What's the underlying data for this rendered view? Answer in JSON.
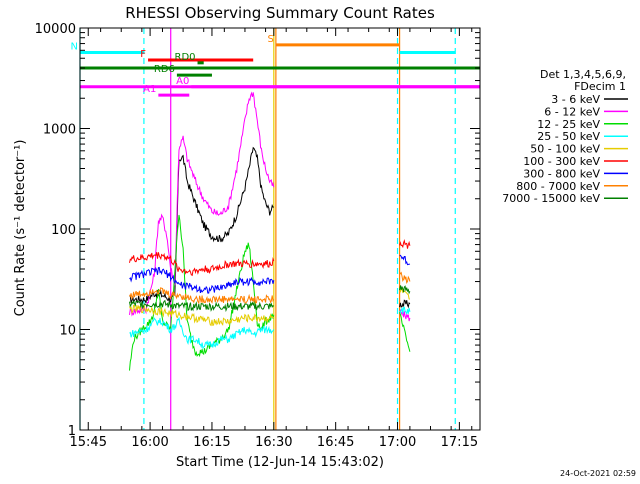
{
  "chart_data": {
    "type": "line",
    "title": "RHESSI Observing Summary Count Rates",
    "xlabel": "Start Time (12-Jun-14 15:43:02)",
    "ylabel": "Count Rate (s⁻¹ detector⁻¹)",
    "x_unit": "minutes after 15:43:02",
    "xlim": [
      0,
      97
    ],
    "ylim": [
      1,
      10000
    ],
    "y_scale": "log",
    "grid": false,
    "legend_position": "right",
    "timestamp": "24-Oct-2021 02:59",
    "x_ticks": [
      {
        "label": "15:45",
        "t": 2
      },
      {
        "label": "16:00",
        "t": 17
      },
      {
        "label": "16:15",
        "t": 32
      },
      {
        "label": "16:30",
        "t": 47
      },
      {
        "label": "16:45",
        "t": 62
      },
      {
        "label": "17:00",
        "t": 77
      },
      {
        "label": "17:15",
        "t": 92
      }
    ],
    "y_ticks": [
      {
        "label": "1",
        "v": 1
      },
      {
        "label": "10",
        "v": 10
      },
      {
        "label": "100",
        "v": 100
      },
      {
        "label": "1000",
        "v": 1000
      },
      {
        "label": "10000",
        "v": 10000
      }
    ],
    "legend": {
      "header": [
        "Det 1,3,4,5,6,9,",
        "FDecim 1"
      ],
      "entries": [
        {
          "label": "3 - 6 keV",
          "color": "#000000"
        },
        {
          "label": "6 - 12 keV",
          "color": "#ff00ff"
        },
        {
          "label": "12 - 25 keV",
          "color": "#00dd00"
        },
        {
          "label": "25 - 50 keV",
          "color": "#00ffff"
        },
        {
          "label": "50 - 100 keV",
          "color": "#e6cc00"
        },
        {
          "label": "100 - 300 keV",
          "color": "#ff0000"
        },
        {
          "label": "300 - 800 keV",
          "color": "#0000ff"
        },
        {
          "label": "800 - 7000 keV",
          "color": "#ff8000"
        },
        {
          "label": "7000 - 15000 keV",
          "color": "#008000"
        }
      ]
    },
    "series": [
      {
        "name": "3 - 6 keV",
        "color": "#000000",
        "segments": [
          [
            [
              12,
              20
            ],
            [
              16,
              20
            ],
            [
              18,
              23
            ],
            [
              20,
              22
            ],
            [
              22,
              20
            ],
            [
              23,
              21
            ],
            [
              24,
              500
            ],
            [
              25,
              520
            ],
            [
              26,
              300
            ],
            [
              28,
              180
            ],
            [
              30,
              110
            ],
            [
              32,
              85
            ],
            [
              34,
              80
            ],
            [
              36,
              90
            ],
            [
              38,
              140
            ],
            [
              40,
              260
            ],
            [
              41,
              400
            ],
            [
              42,
              650
            ],
            [
              43,
              500
            ],
            [
              44,
              250
            ],
            [
              45,
              180
            ],
            [
              46,
              150
            ],
            [
              47,
              165
            ]
          ],
          [
            [
              77.5,
              18
            ],
            [
              80,
              18
            ]
          ]
        ]
      },
      {
        "name": "6 - 12 keV",
        "color": "#ff00ff",
        "segments": [
          [
            [
              12,
              15
            ],
            [
              16,
              16
            ],
            [
              18,
              35
            ],
            [
              19,
              120
            ],
            [
              20,
              130
            ],
            [
              21,
              90
            ],
            [
              22,
              40
            ],
            [
              23,
              30
            ],
            [
              24,
              650
            ],
            [
              25,
              800
            ],
            [
              26,
              500
            ],
            [
              28,
              300
            ],
            [
              30,
              200
            ],
            [
              32,
              150
            ],
            [
              34,
              140
            ],
            [
              36,
              170
            ],
            [
              38,
              400
            ],
            [
              40,
              1200
            ],
            [
              41,
              2000
            ],
            [
              42,
              2300
            ],
            [
              43,
              1200
            ],
            [
              44,
              600
            ],
            [
              45,
              400
            ],
            [
              46,
              300
            ],
            [
              47,
              260
            ]
          ],
          [
            [
              77.5,
              15
            ],
            [
              80,
              13
            ]
          ]
        ]
      },
      {
        "name": "12 - 25 keV",
        "color": "#00dd00",
        "segments": [
          [
            [
              12,
              4
            ],
            [
              13,
              8
            ],
            [
              15,
              10
            ],
            [
              17,
              12
            ],
            [
              18,
              15
            ],
            [
              19,
              25
            ],
            [
              20,
              12
            ],
            [
              22,
              10
            ],
            [
              24,
              150
            ],
            [
              25,
              60
            ],
            [
              26,
              12
            ],
            [
              27,
              8
            ],
            [
              28,
              6
            ],
            [
              30,
              6
            ],
            [
              32,
              7
            ],
            [
              34,
              8
            ],
            [
              36,
              10
            ],
            [
              38,
              25
            ],
            [
              40,
              60
            ],
            [
              41,
              70
            ],
            [
              42,
              30
            ],
            [
              43,
              12
            ],
            [
              44,
              10
            ],
            [
              45,
              12
            ],
            [
              46,
              13
            ],
            [
              47,
              14
            ]
          ],
          [
            [
              77.5,
              14
            ],
            [
              80,
              6
            ]
          ]
        ]
      },
      {
        "name": "25 - 50 keV",
        "color": "#00ffff",
        "segments": [
          [
            [
              12,
              9
            ],
            [
              16,
              10
            ],
            [
              18,
              12
            ],
            [
              20,
              12
            ],
            [
              22,
              10
            ],
            [
              24,
              12
            ],
            [
              26,
              8
            ],
            [
              28,
              8
            ],
            [
              30,
              7
            ],
            [
              32,
              7
            ],
            [
              34,
              8
            ],
            [
              36,
              8
            ],
            [
              38,
              9
            ],
            [
              40,
              10
            ],
            [
              42,
              9
            ],
            [
              44,
              10
            ],
            [
              46,
              10
            ],
            [
              47,
              10
            ]
          ],
          [
            [
              77.5,
              16
            ],
            [
              80,
              15
            ]
          ]
        ]
      },
      {
        "name": "50 - 100 keV",
        "color": "#e6cc00",
        "segments": [
          [
            [
              12,
              16
            ],
            [
              16,
              16
            ],
            [
              20,
              15
            ],
            [
              24,
              14
            ],
            [
              28,
              13
            ],
            [
              32,
              12
            ],
            [
              36,
              12
            ],
            [
              40,
              13
            ],
            [
              44,
              13
            ],
            [
              47,
              13
            ]
          ],
          [
            [
              77.5,
              25
            ],
            [
              80,
              20
            ]
          ]
        ]
      },
      {
        "name": "100 - 300 keV",
        "color": "#ff0000",
        "segments": [
          [
            [
              12,
              50
            ],
            [
              16,
              52
            ],
            [
              18,
              55
            ],
            [
              20,
              55
            ],
            [
              22,
              50
            ],
            [
              24,
              40
            ],
            [
              26,
              38
            ],
            [
              28,
              38
            ],
            [
              30,
              40
            ],
            [
              32,
              40
            ],
            [
              34,
              42
            ],
            [
              36,
              45
            ],
            [
              38,
              45
            ],
            [
              40,
              45
            ],
            [
              42,
              45
            ],
            [
              44,
              45
            ],
            [
              46,
              45
            ],
            [
              47,
              48
            ]
          ],
          [
            [
              77.5,
              75
            ],
            [
              80,
              68
            ]
          ]
        ]
      },
      {
        "name": "300 - 800 keV",
        "color": "#0000ff",
        "segments": [
          [
            [
              12,
              33
            ],
            [
              16,
              36
            ],
            [
              18,
              38
            ],
            [
              20,
              38
            ],
            [
              22,
              34
            ],
            [
              24,
              28
            ],
            [
              26,
              27
            ],
            [
              28,
              26
            ],
            [
              30,
              25
            ],
            [
              32,
              25
            ],
            [
              34,
              26
            ],
            [
              36,
              28
            ],
            [
              38,
              30
            ],
            [
              40,
              30
            ],
            [
              42,
              30
            ],
            [
              44,
              30
            ],
            [
              46,
              30
            ],
            [
              47,
              31
            ]
          ],
          [
            [
              77.5,
              55
            ],
            [
              80,
              45
            ]
          ]
        ]
      },
      {
        "name": "800 - 7000 keV",
        "color": "#ff8000",
        "segments": [
          [
            [
              12,
              22
            ],
            [
              16,
              23
            ],
            [
              18,
              25
            ],
            [
              20,
              24
            ],
            [
              22,
              22
            ],
            [
              24,
              22
            ],
            [
              26,
              21
            ],
            [
              28,
              20
            ],
            [
              30,
              20
            ],
            [
              32,
              20
            ],
            [
              34,
              20
            ],
            [
              36,
              20
            ],
            [
              38,
              20
            ],
            [
              40,
              20
            ],
            [
              42,
              20
            ],
            [
              44,
              20
            ],
            [
              46,
              20
            ],
            [
              47,
              20
            ]
          ],
          [
            [
              77.5,
              35
            ],
            [
              80,
              30
            ]
          ]
        ]
      },
      {
        "name": "7000 - 15000 keV",
        "color": "#008000",
        "segments": [
          [
            [
              12,
              18
            ],
            [
              16,
              18
            ],
            [
              20,
              18
            ],
            [
              24,
              17
            ],
            [
              28,
              17
            ],
            [
              32,
              17
            ],
            [
              36,
              17
            ],
            [
              40,
              17
            ],
            [
              44,
              17
            ],
            [
              47,
              17
            ]
          ],
          [
            [
              77.5,
              26
            ],
            [
              80,
              24
            ]
          ]
        ]
      }
    ],
    "flag_bars": [
      {
        "label": "N",
        "color": "#00ffff",
        "spans": [
          [
            0,
            15.5
          ],
          [
            77.5,
            91
          ]
        ],
        "level": 5700
      },
      {
        "label": "S",
        "color": "#ff8000",
        "spans": [
          [
            47.5,
            77.5
          ]
        ],
        "level": 6800
      },
      {
        "label": "F",
        "color": "#ff0000",
        "spans": [
          [
            16.5,
            42
          ]
        ],
        "level": 4800
      },
      {
        "label": "RD0",
        "color": "#008000",
        "spans": [
          [
            28.5,
            30
          ]
        ],
        "level": 4500
      },
      {
        "label": "RD6",
        "color": "#008000",
        "spans": [
          [
            23.5,
            32
          ]
        ],
        "level": 3400
      },
      {
        "label": "A1",
        "color": "#ff00ff",
        "spans": [
          [
            19,
            26.5
          ]
        ],
        "level": 2150
      },
      {
        "label": "A0",
        "color": "#ff00ff",
        "spans": [
          [
            27,
            97
          ]
        ],
        "level": 2600
      },
      {
        "label": "",
        "color": "#008000",
        "spans": [
          [
            0,
            97
          ]
        ],
        "level": 4000
      },
      {
        "label": "",
        "color": "#ff00ff",
        "spans": [
          [
            0,
            97
          ]
        ],
        "level": 2600
      }
    ],
    "vertical_lines": [
      {
        "t": 0,
        "color": "#00ffff",
        "style": "solid"
      },
      {
        "t": 15.5,
        "color": "#00ffff",
        "style": "dashed"
      },
      {
        "t": 77,
        "color": "#00ffff",
        "style": "dashed"
      },
      {
        "t": 77.5,
        "color": "#ff8000",
        "style": "solid"
      },
      {
        "t": 91,
        "color": "#00ffff",
        "style": "dashed"
      },
      {
        "t": 47.5,
        "color": "#ff8000",
        "style": "solid"
      },
      {
        "t": 47,
        "color": "#e6cc00",
        "style": "solid"
      },
      {
        "t": 22,
        "color": "#ff00ff",
        "style": "solid"
      }
    ]
  }
}
